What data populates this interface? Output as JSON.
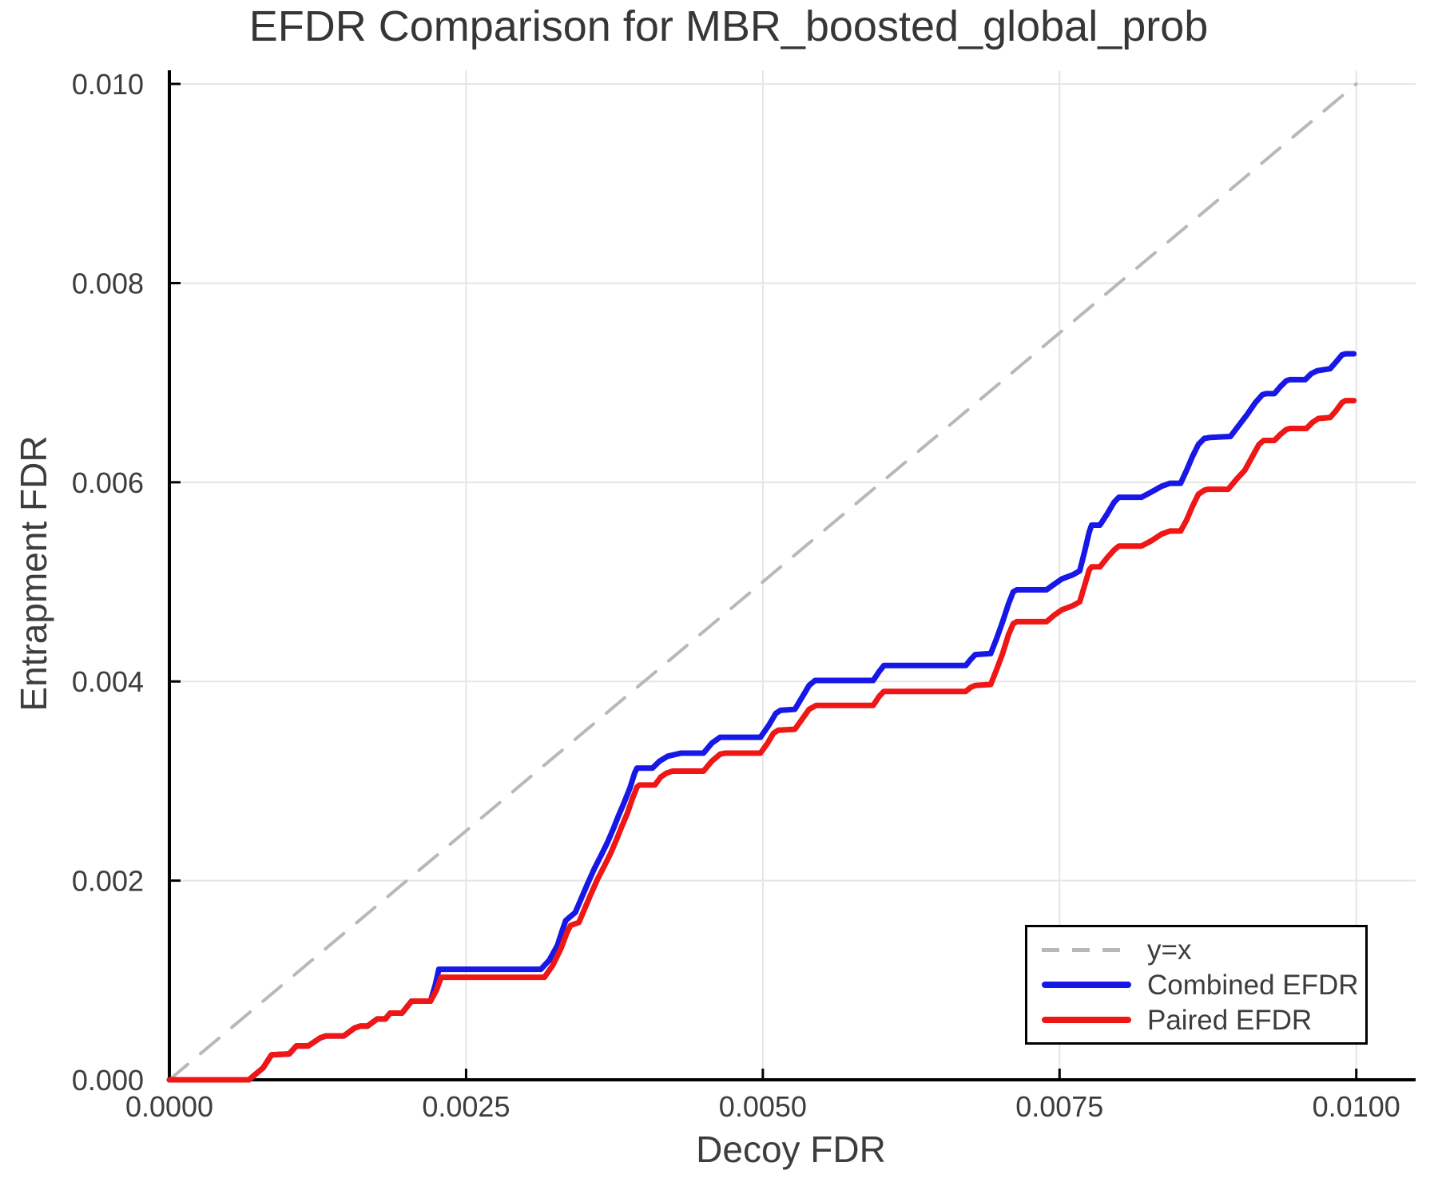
{
  "title": "EFDR Comparison for MBR_boosted_global_prob",
  "chart_data": {
    "type": "line",
    "title": "EFDR Comparison for MBR_boosted_global_prob",
    "xlabel": "Decoy FDR",
    "ylabel": "Entrapment FDR",
    "xlim": [
      0,
      0.0105
    ],
    "ylim": [
      0,
      0.010137
    ],
    "grid": true,
    "legend_position": "bottom-right",
    "colors": {
      "grid": "#e5e5e5",
      "spine": "#000000",
      "text": "#3d3d3d",
      "title_text": "#363636"
    },
    "xticks": {
      "values": [
        0,
        0.0025,
        0.005,
        0.0075,
        0.01
      ],
      "labels": [
        "0.0000",
        "0.0025",
        "0.0050",
        "0.0075",
        "0.0100"
      ]
    },
    "yticks": {
      "values": [
        0,
        0.002,
        0.004,
        0.006,
        0.008,
        0.01
      ],
      "labels": [
        "0.000",
        "0.002",
        "0.004",
        "0.006",
        "0.008",
        "0.010"
      ]
    },
    "series": [
      {
        "id": "identity",
        "name": "y=x",
        "color": "#b8b8b8",
        "style": "dashed",
        "width": 4,
        "x": [
          0,
          0.01
        ],
        "y": [
          0,
          0.01
        ]
      },
      {
        "id": "combined-efdr",
        "name": "Combined EFDR",
        "color": "#1717e8",
        "style": "solid",
        "width": 7,
        "x": [
          0,
          0.00067,
          0.00079,
          0.00086,
          0.00101,
          0.00107,
          0.00117,
          0.00127,
          0.00132,
          0.00147,
          0.00156,
          0.00161,
          0.00167,
          0.00175,
          0.00182,
          0.00186,
          0.00196,
          0.00204,
          0.0022,
          0.00224,
          0.00227,
          0.00313,
          0.0032,
          0.00327,
          0.00331,
          0.00334,
          0.00342,
          0.00347,
          0.00352,
          0.00358,
          0.00364,
          0.00369,
          0.00374,
          0.00378,
          0.00383,
          0.00388,
          0.00392,
          0.00394,
          0.00407,
          0.00413,
          0.0042,
          0.00431,
          0.0045,
          0.00457,
          0.00464,
          0.00498,
          0.00505,
          0.00511,
          0.00515,
          0.00527,
          0.00533,
          0.00539,
          0.00544,
          0.00593,
          0.00598,
          0.00602,
          0.00671,
          0.00675,
          0.00679,
          0.00692,
          0.00697,
          0.00702,
          0.00707,
          0.00711,
          0.00714,
          0.00739,
          0.00746,
          0.00752,
          0.00761,
          0.00767,
          0.00771,
          0.00775,
          0.00777,
          0.00784,
          0.0079,
          0.00796,
          0.008,
          0.00819,
          0.00827,
          0.00836,
          0.00843,
          0.00852,
          0.00857,
          0.00862,
          0.00867,
          0.00872,
          0.00877,
          0.00894,
          0.00901,
          0.00908,
          0.00915,
          0.00921,
          0.00924,
          0.00931,
          0.00936,
          0.00941,
          0.00944,
          0.00957,
          0.00962,
          0.00967,
          0.00978,
          0.00983,
          0.00988,
          0.00991,
          0.00998
        ],
        "y": [
          0,
          0,
          0.00012,
          0.00025,
          0.00026,
          0.00034,
          0.00034,
          0.00042,
          0.00044,
          0.00044,
          0.00052,
          0.00054,
          0.00054,
          0.00061,
          0.00061,
          0.00067,
          0.00067,
          0.00079,
          0.00079,
          0.00095,
          0.00111,
          0.00111,
          0.0012,
          0.00135,
          0.0015,
          0.0016,
          0.00168,
          0.00182,
          0.00196,
          0.00212,
          0.00226,
          0.00238,
          0.00252,
          0.00264,
          0.00278,
          0.00293,
          0.00308,
          0.00313,
          0.00313,
          0.0032,
          0.00325,
          0.00328,
          0.00328,
          0.00338,
          0.00344,
          0.00344,
          0.00356,
          0.00368,
          0.00371,
          0.00372,
          0.00384,
          0.00396,
          0.00401,
          0.00401,
          0.0041,
          0.00416,
          0.00416,
          0.00422,
          0.00427,
          0.00428,
          0.00443,
          0.0046,
          0.00478,
          0.0049,
          0.00492,
          0.00492,
          0.00498,
          0.00503,
          0.00507,
          0.00511,
          0.0053,
          0.0055,
          0.00557,
          0.00557,
          0.00568,
          0.0058,
          0.00585,
          0.00585,
          0.0059,
          0.00596,
          0.00599,
          0.00599,
          0.00612,
          0.00626,
          0.00638,
          0.00644,
          0.00645,
          0.00646,
          0.00657,
          0.00668,
          0.0068,
          0.00688,
          0.00689,
          0.00689,
          0.00696,
          0.00702,
          0.00703,
          0.00703,
          0.00709,
          0.00712,
          0.00714,
          0.00721,
          0.00728,
          0.00729,
          0.00729
        ]
      },
      {
        "id": "paired-efdr",
        "name": "Paired EFDR",
        "color": "#ef1616",
        "style": "solid",
        "width": 7,
        "x": [
          0,
          0.00067,
          0.00079,
          0.00086,
          0.00101,
          0.00107,
          0.00117,
          0.00127,
          0.00132,
          0.00147,
          0.00156,
          0.00161,
          0.00167,
          0.00175,
          0.00182,
          0.00186,
          0.00196,
          0.00204,
          0.0022,
          0.00225,
          0.00229,
          0.00316,
          0.00323,
          0.0033,
          0.00335,
          0.00338,
          0.00345,
          0.0035,
          0.00355,
          0.00361,
          0.00367,
          0.00372,
          0.00377,
          0.00381,
          0.00386,
          0.0039,
          0.00394,
          0.00396,
          0.00409,
          0.00414,
          0.00419,
          0.00424,
          0.0045,
          0.00457,
          0.00464,
          0.00468,
          0.00498,
          0.00504,
          0.00509,
          0.00513,
          0.00527,
          0.00533,
          0.00539,
          0.00545,
          0.00593,
          0.00598,
          0.00602,
          0.00671,
          0.00675,
          0.00679,
          0.00692,
          0.00697,
          0.00702,
          0.00707,
          0.00711,
          0.00714,
          0.00739,
          0.00746,
          0.00752,
          0.00761,
          0.00767,
          0.00771,
          0.00775,
          0.00777,
          0.00784,
          0.0079,
          0.00796,
          0.008,
          0.00819,
          0.00827,
          0.00836,
          0.00843,
          0.00852,
          0.00857,
          0.00862,
          0.00867,
          0.00872,
          0.00875,
          0.00892,
          0.00899,
          0.00906,
          0.00912,
          0.00918,
          0.00922,
          0.00931,
          0.00936,
          0.00941,
          0.00944,
          0.00958,
          0.00963,
          0.00968,
          0.00978,
          0.00983,
          0.00988,
          0.00991,
          0.00998
        ],
        "y": [
          0,
          0,
          0.00012,
          0.00025,
          0.00026,
          0.00034,
          0.00034,
          0.00042,
          0.00044,
          0.00044,
          0.00052,
          0.00054,
          0.00054,
          0.00061,
          0.00061,
          0.00067,
          0.00067,
          0.00079,
          0.00079,
          0.0009,
          0.00103,
          0.00103,
          0.00115,
          0.00132,
          0.00148,
          0.00155,
          0.00158,
          0.00172,
          0.00186,
          0.00202,
          0.00216,
          0.00228,
          0.00242,
          0.00254,
          0.00268,
          0.00282,
          0.00294,
          0.00296,
          0.00296,
          0.00304,
          0.00308,
          0.0031,
          0.0031,
          0.0032,
          0.00327,
          0.00328,
          0.00328,
          0.00338,
          0.00348,
          0.00351,
          0.00352,
          0.00362,
          0.00372,
          0.00376,
          0.00376,
          0.00385,
          0.0039,
          0.0039,
          0.00394,
          0.00396,
          0.00397,
          0.00412,
          0.00428,
          0.00447,
          0.00458,
          0.0046,
          0.0046,
          0.00467,
          0.00472,
          0.00476,
          0.0048,
          0.00496,
          0.00512,
          0.00515,
          0.00515,
          0.00524,
          0.00532,
          0.00536,
          0.00536,
          0.00541,
          0.00548,
          0.00551,
          0.00551,
          0.00562,
          0.00576,
          0.00588,
          0.00592,
          0.00593,
          0.00593,
          0.00603,
          0.00612,
          0.00625,
          0.00638,
          0.00642,
          0.00642,
          0.00648,
          0.00653,
          0.00654,
          0.00654,
          0.0066,
          0.00664,
          0.00665,
          0.00672,
          0.0068,
          0.00682,
          0.00682
        ]
      }
    ]
  }
}
